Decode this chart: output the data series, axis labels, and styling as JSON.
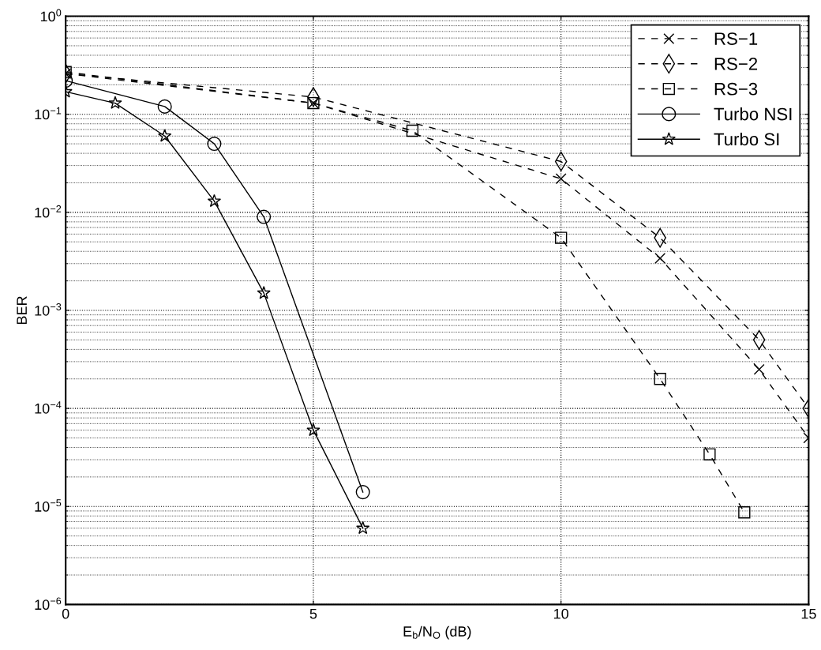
{
  "chart_data": {
    "type": "line",
    "xlabel": "E$_{b}$/N$_{O}$ (dB)",
    "ylabel": "BER",
    "log": "y",
    "grid": true,
    "legend": "top right",
    "xlim": [
      0,
      15
    ],
    "xticks": [
      0,
      5,
      10,
      15
    ],
    "ylim": [
      1e-06,
      1
    ],
    "yticks": [
      {
        "value": 1e-06,
        "label": "10$^{−6}$"
      },
      {
        "value": 1e-05,
        "label": "10$^{−5}$"
      },
      {
        "value": 0.0001,
        "label": "10$^{−4}$"
      },
      {
        "value": 0.001,
        "label": "10$^{−3}$"
      },
      {
        "value": 0.01,
        "label": "10$^{−2}$"
      },
      {
        "value": 0.1,
        "label": "10$^{−1}$"
      },
      {
        "value": 1,
        "label": "10$^{0}$"
      }
    ],
    "series": [
      {
        "name": "RS−1",
        "color": "#000000",
        "marker": "cross",
        "line_style": "dashed",
        "x": [
          0,
          5,
          10,
          12,
          14,
          15
        ],
        "values": [
          0.26,
          0.13,
          0.022,
          0.0034,
          0.00025,
          5e-05
        ]
      },
      {
        "name": "RS−2",
        "color": "#000000",
        "marker": "diamond",
        "line_style": "dashed",
        "x": [
          0,
          5,
          10,
          12,
          14,
          15
        ],
        "values": [
          0.26,
          0.15,
          0.033,
          0.0055,
          0.0005,
          0.0001
        ]
      },
      {
        "name": "RS−3",
        "color": "#000000",
        "marker": "square",
        "line_style": "dashed",
        "x": [
          0,
          5,
          7,
          10,
          12,
          13,
          13.7
        ],
        "values": [
          0.27,
          0.13,
          0.068,
          0.0055,
          0.0002,
          3.4e-05,
          8.7e-06
        ]
      },
      {
        "name": "Turbo NSI",
        "color": "#000000",
        "marker": "circle",
        "line_style": "solid",
        "x": [
          0,
          2,
          3,
          4,
          6
        ],
        "values": [
          0.22,
          0.12,
          0.05,
          0.009,
          1.4e-05
        ]
      },
      {
        "name": "Turbo SI",
        "color": "#000000",
        "marker": "star",
        "line_style": "solid",
        "x": [
          0,
          1,
          2,
          3,
          4,
          5,
          6
        ],
        "values": [
          0.17,
          0.13,
          0.06,
          0.013,
          0.0015,
          6e-05,
          6e-06
        ]
      }
    ]
  }
}
